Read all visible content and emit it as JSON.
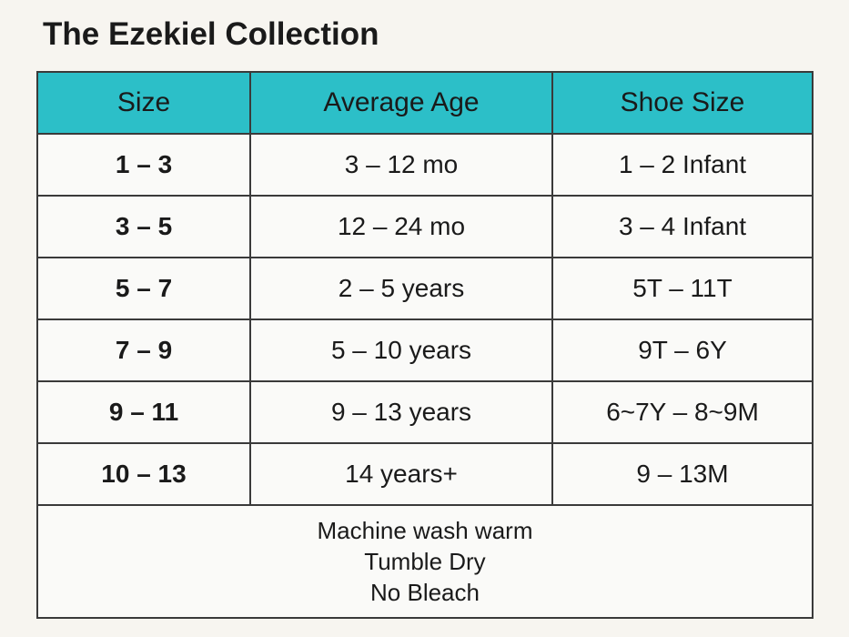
{
  "title": "The Ezekiel Collection",
  "table": {
    "header": [
      "Size",
      "Average Age",
      "Shoe Size"
    ],
    "rows": [
      [
        "1 – 3",
        "3 – 12 mo",
        "1 – 2 Infant"
      ],
      [
        "3 – 5",
        "12 – 24 mo",
        "3 – 4 Infant"
      ],
      [
        "5 – 7",
        "2 – 5 years",
        "5T – 11T"
      ],
      [
        "7 – 9",
        "5 – 10 years",
        "9T – 6Y"
      ],
      [
        "9 – 11",
        "9 – 13 years",
        "6~7Y – 8~9M"
      ],
      [
        "10 – 13",
        "14 years+",
        "9 – 13M"
      ]
    ],
    "notes": [
      "Machine wash warm",
      "Tumble Dry",
      "No Bleach"
    ]
  }
}
